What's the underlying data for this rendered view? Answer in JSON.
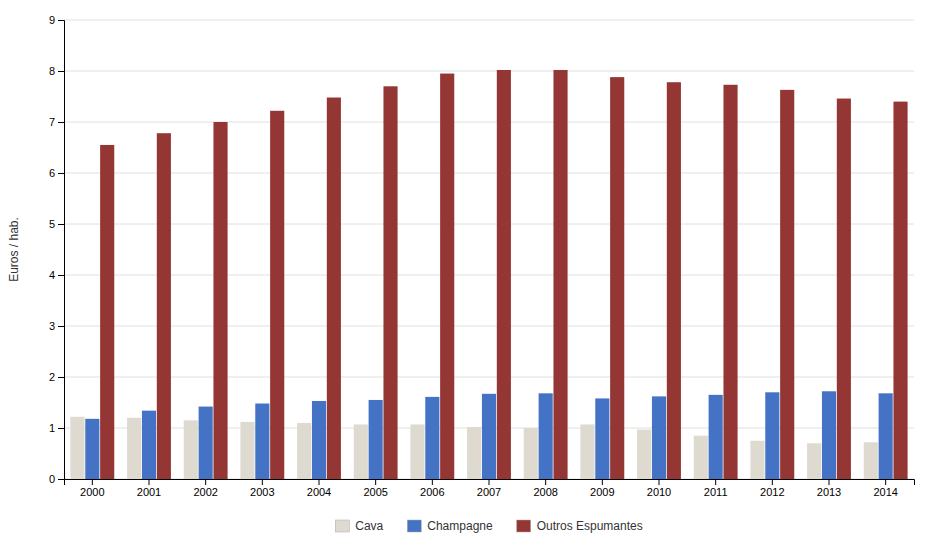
{
  "chart_data": {
    "type": "bar",
    "y_label": "Euros / hab.",
    "categories": [
      "2000",
      "2001",
      "2002",
      "2003",
      "2004",
      "2005",
      "2006",
      "2007",
      "2008",
      "2009",
      "2010",
      "2011",
      "2012",
      "2013",
      "2014"
    ],
    "series": [
      {
        "name": "Cava",
        "color": "#dedad0",
        "values": [
          1.22,
          1.2,
          1.15,
          1.12,
          1.1,
          1.07,
          1.07,
          1.02,
          1.0,
          1.07,
          0.97,
          0.85,
          0.75,
          0.7,
          0.72
        ]
      },
      {
        "name": "Champagne",
        "color": "#4472c4",
        "values": [
          1.18,
          1.34,
          1.42,
          1.48,
          1.53,
          1.55,
          1.61,
          1.67,
          1.68,
          1.58,
          1.62,
          1.65,
          1.7,
          1.72,
          1.68
        ]
      },
      {
        "name": "Outros Espumantes",
        "color": "#943634",
        "values": [
          6.55,
          6.78,
          7.0,
          7.22,
          7.48,
          7.7,
          7.95,
          8.02,
          8.02,
          7.88,
          7.78,
          7.73,
          7.63,
          7.46,
          7.4
        ]
      }
    ],
    "ylim": [
      0,
      9
    ],
    "yticks": [
      0,
      1,
      2,
      3,
      4,
      5,
      6,
      7,
      8,
      9
    ],
    "grid": true,
    "legend": "bottom"
  }
}
